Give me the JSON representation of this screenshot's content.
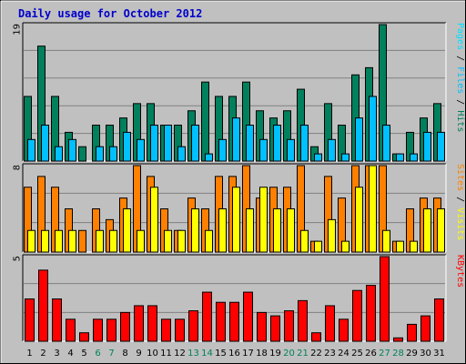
{
  "chart_data": {
    "type": "bar",
    "title": "Daily usage for October 2012",
    "colors": {
      "frame_bg": "#c0c0c0",
      "plot_bg": "#c0c0c0",
      "grid": "#808080",
      "title": "#0000cc",
      "hits": "#00805c",
      "files": "#00c0ff",
      "pages": "#00e0ff",
      "sites": "#ff8000",
      "visits": "#ffff00",
      "kbytes": "#ff0000",
      "weekend_tick": "#00805c",
      "weekday_tick": "#000000"
    },
    "categories": [
      "1",
      "2",
      "3",
      "4",
      "5",
      "6",
      "7",
      "8",
      "9",
      "10",
      "11",
      "12",
      "13",
      "14",
      "15",
      "16",
      "17",
      "18",
      "19",
      "20",
      "21",
      "22",
      "23",
      "24",
      "25",
      "26",
      "27",
      "28",
      "29",
      "30",
      "31"
    ],
    "weekend_days": [
      "6",
      "7",
      "13",
      "14",
      "20",
      "21",
      "27",
      "28"
    ],
    "panels": [
      {
        "name": "hits-files-pages",
        "scale_label": "19",
        "ylim": [
          0,
          19
        ],
        "series": [
          {
            "name": "Hits",
            "color": "#00805c",
            "values": [
              9,
              16,
              9,
              4,
              2,
              5,
              5,
              6,
              8,
              8,
              5,
              5,
              7,
              11,
              9,
              9,
              11,
              7,
              6,
              7,
              10,
              2,
              8,
              5,
              12,
              13,
              19,
              1,
              4,
              6,
              8
            ]
          },
          {
            "name": "Files",
            "color": "#00c0ff",
            "values": [
              3,
              5,
              2,
              3,
              0,
              2,
              2,
              4,
              3,
              5,
              5,
              2,
              5,
              1,
              3,
              6,
              5,
              3,
              5,
              3,
              5,
              1,
              3,
              1,
              6,
              9,
              5,
              1,
              1,
              4,
              4
            ]
          },
          {
            "name": "Pages",
            "color": "#00e0ff",
            "values": [
              3,
              5,
              2,
              3,
              0,
              2,
              2,
              4,
              3,
              5,
              5,
              2,
              5,
              1,
              3,
              6,
              5,
              3,
              5,
              3,
              5,
              1,
              3,
              1,
              6,
              9,
              5,
              1,
              1,
              4,
              4
            ]
          }
        ],
        "side_labels": [
          {
            "text": "Pages",
            "color": "#00e0ff"
          },
          {
            "text": " / ",
            "color": "#000000"
          },
          {
            "text": "Files",
            "color": "#00c0ff"
          },
          {
            "text": " / ",
            "color": "#000000"
          },
          {
            "text": "Hits",
            "color": "#00805c"
          }
        ]
      },
      {
        "name": "sites-visits",
        "scale_label": "8",
        "ylim": [
          0,
          8
        ],
        "series": [
          {
            "name": "Sites",
            "color": "#ff8000",
            "values": [
              6,
              7,
              6,
              4,
              2,
              4,
              3,
              5,
              8,
              7,
              4,
              2,
              5,
              4,
              7,
              7,
              8,
              5,
              6,
              6,
              8,
              1,
              7,
              5,
              8,
              8,
              8,
              1,
              4,
              5,
              5
            ]
          },
          {
            "name": "Visits",
            "color": "#ffff00",
            "values": [
              2,
              2,
              2,
              2,
              0,
              2,
              2,
              4,
              2,
              6,
              2,
              2,
              4,
              2,
              4,
              6,
              4,
              6,
              4,
              4,
              2,
              1,
              3,
              1,
              6,
              8,
              2,
              1,
              1,
              4,
              4
            ]
          }
        ],
        "side_labels": [
          {
            "text": "Sites",
            "color": "#ff8000"
          },
          {
            "text": " / ",
            "color": "#000000"
          },
          {
            "text": "Visits",
            "color": "#ffff00"
          }
        ]
      },
      {
        "name": "kbytes",
        "scale_label": "5",
        "ylim": [
          0,
          5
        ],
        "series": [
          {
            "name": "KBytes",
            "color": "#ff0000",
            "values": [
              2.5,
              4.2,
              2.5,
              1.3,
              0.5,
              1.3,
              1.3,
              1.7,
              2.1,
              2.1,
              1.3,
              1.3,
              1.8,
              2.9,
              2.3,
              2.3,
              2.9,
              1.7,
              1.5,
              1.8,
              2.4,
              0.5,
              2.1,
              1.3,
              3,
              3.3,
              5,
              0.2,
              1,
              1.5,
              2.5
            ]
          }
        ],
        "side_labels": [
          {
            "text": "KBytes",
            "color": "#ff0000"
          }
        ]
      }
    ]
  }
}
